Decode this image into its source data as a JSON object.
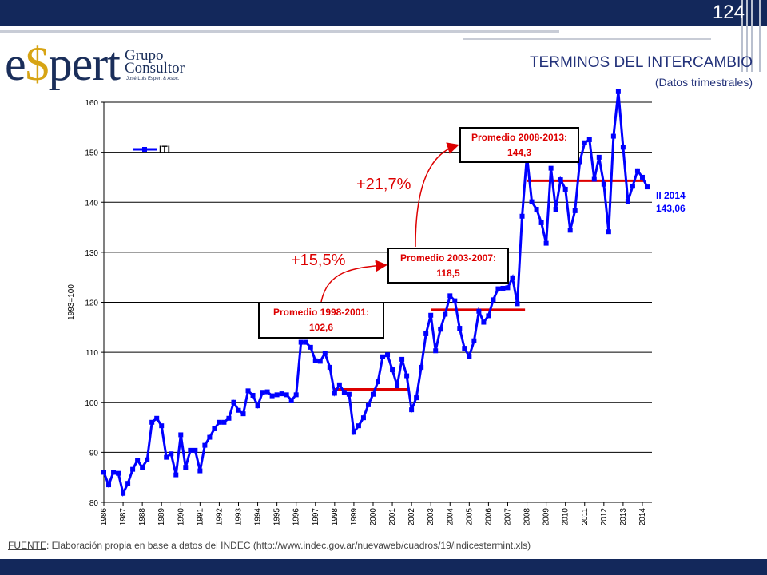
{
  "slide": {
    "number": "124",
    "title": "TERMINOS DEL INTERCAMBIO",
    "subtitle": "(Datos trimestrales)"
  },
  "logo": {
    "word_prefix": "e",
    "word_dollar": "$",
    "word_suffix": "pert",
    "line1": "Grupo",
    "line2": "Consultor",
    "tagline": "José Luis Espert & Asoc."
  },
  "footer": {
    "source_label": "FUENTE",
    "source_text": ": Elaboración propia en base a datos del INDEC (http://www.indec.gov.ar/nuevaweb/cuadros/19/indicestermint.xls)"
  },
  "colors": {
    "bar": "#13285b",
    "series": "#0000ff",
    "averages": "#dd0000"
  },
  "chart_data": {
    "type": "line",
    "ylabel": "1993=100",
    "ylim": [
      80,
      160
    ],
    "yticks": [
      80,
      90,
      100,
      110,
      120,
      130,
      140,
      150,
      160
    ],
    "xlim": [
      1986,
      2014.5
    ],
    "xticks": [
      "1986",
      "1987",
      "1988",
      "1989",
      "1990",
      "1991",
      "1992",
      "1993",
      "1994",
      "1995",
      "1996",
      "1997",
      "1998",
      "1999",
      "2000",
      "2001",
      "2002",
      "2003",
      "2004",
      "2005",
      "2006",
      "2007",
      "2008",
      "2009",
      "2010",
      "2011",
      "2012",
      "2013",
      "2014"
    ],
    "grid": true,
    "legend": "top-left",
    "series": [
      {
        "name": "ITI",
        "x": [
          1986.0,
          1986.25,
          1986.5,
          1986.75,
          1987.0,
          1987.25,
          1987.5,
          1987.75,
          1988.0,
          1988.25,
          1988.5,
          1988.75,
          1989.0,
          1989.25,
          1989.5,
          1989.75,
          1990.0,
          1990.25,
          1990.5,
          1990.75,
          1991.0,
          1991.25,
          1991.5,
          1991.75,
          1992.0,
          1992.25,
          1992.5,
          1992.75,
          1993.0,
          1993.25,
          1993.5,
          1993.75,
          1994.0,
          1994.25,
          1994.5,
          1994.75,
          1995.0,
          1995.25,
          1995.5,
          1995.75,
          1996.0,
          1996.25,
          1996.5,
          1996.75,
          1997.0,
          1997.25,
          1997.5,
          1997.75,
          1998.0,
          1998.25,
          1998.5,
          1998.75,
          1999.0,
          1999.25,
          1999.5,
          1999.75,
          2000.0,
          2000.25,
          2000.5,
          2000.75,
          2001.0,
          2001.25,
          2001.5,
          2001.75,
          2002.0,
          2002.25,
          2002.5,
          2002.75,
          2003.0,
          2003.25,
          2003.5,
          2003.75,
          2004.0,
          2004.25,
          2004.5,
          2004.75,
          2005.0,
          2005.25,
          2005.5,
          2005.75,
          2006.0,
          2006.25,
          2006.5,
          2006.75,
          2007.0,
          2007.25,
          2007.5,
          2007.75,
          2008.0,
          2008.25,
          2008.5,
          2008.75,
          2009.0,
          2009.25,
          2009.5,
          2009.75,
          2010.0,
          2010.25,
          2010.5,
          2010.75,
          2011.0,
          2011.25,
          2011.5,
          2011.75,
          2012.0,
          2012.25,
          2012.5,
          2012.75,
          2013.0,
          2013.25,
          2013.5,
          2013.75,
          2014.0,
          2014.25
        ],
        "values": [
          86.0,
          83.5,
          86.0,
          85.8,
          81.8,
          83.8,
          86.6,
          88.4,
          87.0,
          88.5,
          96.0,
          96.8,
          95.3,
          89.0,
          89.7,
          85.5,
          93.5,
          87.0,
          90.4,
          90.4,
          86.3,
          91.4,
          93.0,
          94.7,
          96.0,
          96.0,
          96.8,
          100.0,
          98.4,
          97.7,
          102.3,
          101.4,
          99.3,
          102.0,
          102.1,
          101.3,
          101.5,
          101.7,
          101.5,
          100.4,
          101.5,
          112.0,
          112.0,
          111.0,
          108.3,
          108.2,
          109.8,
          107.0,
          101.8,
          103.5,
          102.0,
          101.6,
          94.0,
          95.3,
          96.9,
          99.5,
          101.6,
          104.1,
          109.1,
          109.5,
          106.5,
          103.3,
          108.6,
          105.3,
          98.5,
          100.9,
          107.0,
          113.7,
          117.4,
          110.3,
          114.6,
          117.6,
          121.3,
          120.3,
          114.8,
          110.8,
          109.2,
          112.3,
          118.2,
          116.0,
          117.3,
          120.5,
          122.7,
          122.8,
          122.9,
          124.9,
          119.7,
          137.2,
          149.3,
          140.1,
          138.6,
          135.9,
          131.8,
          146.8,
          138.6,
          144.5,
          142.6,
          134.4,
          138.3,
          148.1,
          151.9,
          152.5,
          144.6,
          149.0,
          143.6,
          134.1,
          153.2,
          162.1,
          151.0,
          140.2,
          143.2,
          146.3,
          145.0,
          143.06
        ]
      }
    ],
    "averages": [
      {
        "label": "Promedio 1998-2001:",
        "value_label": "102,6",
        "from": 1998.0,
        "to": 2001.9,
        "value": 102.6
      },
      {
        "label": "Promedio 2003-2007:",
        "value_label": "118,5",
        "from": 2003.0,
        "to": 2007.9,
        "value": 118.5
      },
      {
        "label": "Promedio 2008-2013:",
        "value_label": "144,3",
        "from": 2008.0,
        "to": 2014.1,
        "value": 144.3
      }
    ],
    "annotations": [
      {
        "text": "+15,5%"
      },
      {
        "text": "+21,7%"
      },
      {
        "text": "II 2014",
        "text2": "143,06"
      }
    ]
  }
}
